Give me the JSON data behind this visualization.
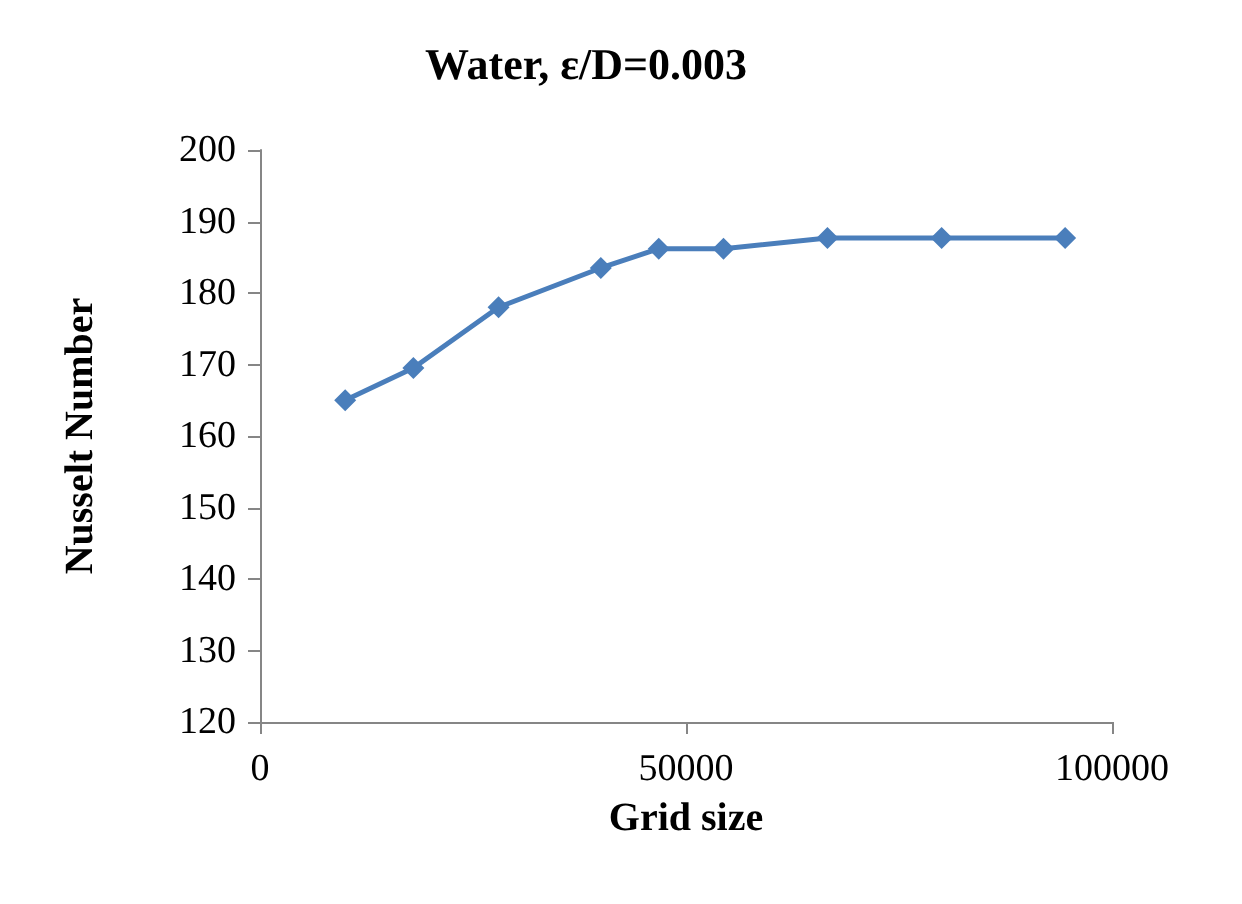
{
  "chart_data": {
    "type": "line",
    "title": "Water, ε/D=0.003",
    "xlabel": "Grid size",
    "ylabel": "Nusselt Number",
    "x": [
      10000,
      18000,
      28000,
      40000,
      46800,
      54400,
      66600,
      80000,
      94500
    ],
    "series": [
      {
        "color": "#4a7ebb",
        "values": [
          165,
          169.5,
          178,
          183.5,
          186.2,
          186.2,
          187.7,
          187.7,
          187.7
        ]
      }
    ],
    "xlim": [
      0,
      100000
    ],
    "xticks": [
      0,
      50000,
      100000
    ],
    "ylim": [
      120,
      200
    ],
    "yticks": [
      120,
      130,
      140,
      150,
      160,
      170,
      180,
      190,
      200
    ],
    "grid": false,
    "marker": "diamond",
    "line_style": "solid"
  }
}
